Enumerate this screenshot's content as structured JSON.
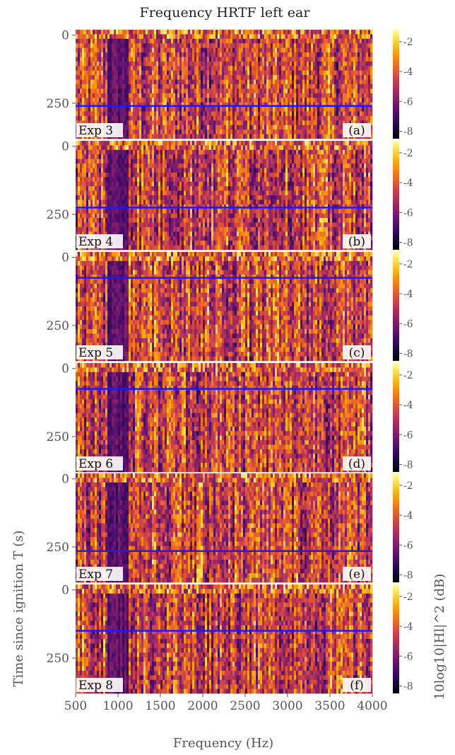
{
  "chart_data": {
    "type": "heatmap",
    "title": "Frequency HRTF left ear",
    "xlabel": "Frequency (Hz)",
    "ylabel": "Time since ignition T (s)",
    "colorbar_label": "10log10|Hl|^2 (dB)",
    "colormap": "inferno",
    "x_range": [
      500,
      4000
    ],
    "x_ticks": [
      500,
      1000,
      1500,
      2000,
      2500,
      3000,
      3500,
      4000
    ],
    "y_range": [
      -20,
      380
    ],
    "y_inverted": true,
    "y_ticks": [
      0,
      250
    ],
    "color_range": [
      -8.5,
      -1.2
    ],
    "color_ticks": [
      -2,
      -4,
      -6,
      -8
    ],
    "panels": [
      {
        "label": "(a)",
        "experiment": "Exp 3",
        "marker_time": 260
      },
      {
        "label": "(b)",
        "experiment": "Exp 4",
        "marker_time": 225
      },
      {
        "label": "(c)",
        "experiment": "Exp 5",
        "marker_time": 75
      },
      {
        "label": "(d)",
        "experiment": "Exp 6",
        "marker_time": 75
      },
      {
        "label": "(e)",
        "experiment": "Exp 7",
        "marker_time": 265
      },
      {
        "label": "(f)",
        "experiment": "Exp 8",
        "marker_time": 150
      }
    ],
    "marker_color": "#1a1aff"
  }
}
